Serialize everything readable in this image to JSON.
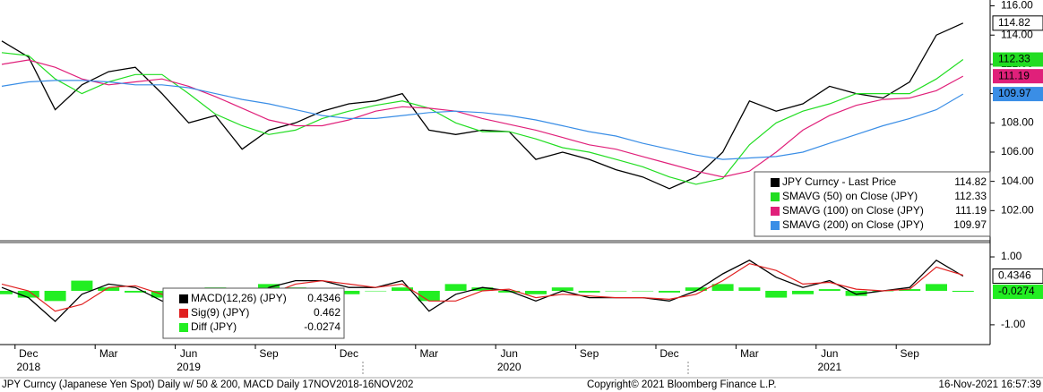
{
  "chart_data": [
    {
      "type": "line",
      "categories": [
        null,
        "Dec",
        null,
        null,
        "Mar",
        null,
        null,
        "Jun",
        null,
        null,
        "Sep",
        null,
        null,
        "Dec",
        null,
        null,
        "Mar",
        null,
        null,
        "Jun",
        null,
        null,
        "Sep",
        null,
        null,
        "Dec",
        null,
        null,
        "Mar",
        null,
        null,
        "Jun",
        null,
        null,
        "Sep",
        null,
        null
      ],
      "year_labels": [
        null,
        "2018",
        null,
        null,
        null,
        null,
        null,
        "2019",
        null,
        null,
        null,
        null,
        null,
        null,
        null,
        null,
        null,
        null,
        null,
        "2020",
        null,
        null,
        null,
        null,
        null,
        null,
        null,
        null,
        null,
        null,
        null,
        "2021",
        null,
        null,
        null,
        null,
        null
      ],
      "series": [
        {
          "name": "JPY Curncy  - Last Price",
          "color": "#000000",
          "values": [
            113.6,
            112.5,
            108.9,
            110.6,
            111.5,
            111.8,
            110.0,
            108.0,
            108.5,
            106.2,
            107.5,
            108.0,
            108.8,
            109.3,
            109.5,
            110.0,
            107.5,
            107.2,
            107.5,
            107.4,
            105.5,
            106.0,
            105.5,
            104.8,
            104.3,
            103.5,
            104.3,
            106.0,
            109.5,
            108.8,
            109.3,
            110.5,
            110.0,
            109.7,
            110.8,
            114.0,
            114.82
          ]
        },
        {
          "name": "SMAVG (50)  on Close (JPY)",
          "color": "#22dd22",
          "values": [
            112.8,
            112.6,
            111.0,
            110.0,
            110.8,
            111.3,
            111.3,
            110.0,
            108.6,
            107.8,
            107.2,
            107.5,
            108.3,
            108.8,
            109.2,
            109.5,
            109.0,
            108.0,
            107.4,
            107.4,
            106.9,
            106.3,
            106.0,
            105.5,
            105.0,
            104.3,
            103.8,
            104.2,
            106.5,
            108.0,
            108.8,
            109.3,
            110.0,
            110.0,
            110.0,
            111.0,
            112.33
          ]
        },
        {
          "name": "SMAVG (100)  on Close (JPY)",
          "color": "#e0207a",
          "values": [
            112.0,
            112.3,
            111.8,
            111.0,
            110.6,
            110.8,
            111.0,
            110.5,
            109.8,
            109.0,
            108.2,
            107.8,
            107.8,
            108.2,
            108.8,
            109.1,
            109.0,
            108.8,
            108.3,
            107.9,
            107.5,
            107.0,
            106.5,
            106.2,
            105.7,
            105.2,
            104.7,
            104.3,
            104.7,
            106.0,
            107.5,
            108.5,
            109.2,
            109.6,
            109.7,
            110.2,
            111.19
          ]
        },
        {
          "name": "SMAVG (200)  on Close (JPY)",
          "color": "#3a8ee6",
          "values": [
            110.5,
            110.8,
            110.9,
            110.9,
            110.8,
            110.6,
            110.6,
            110.4,
            110.0,
            109.6,
            109.3,
            108.9,
            108.5,
            108.3,
            108.3,
            108.5,
            108.7,
            108.8,
            108.7,
            108.5,
            108.2,
            107.8,
            107.4,
            107.1,
            106.6,
            106.2,
            105.8,
            105.5,
            105.6,
            105.7,
            106.0,
            106.6,
            107.2,
            107.8,
            108.3,
            108.9,
            109.97
          ]
        }
      ],
      "ylim": [
        100,
        116.4
      ],
      "yticks": [
        {
          "value": 102,
          "label": "102.00"
        },
        {
          "value": 104,
          "label": "104.00"
        },
        {
          "value": 106,
          "label": "106.00"
        },
        {
          "value": 108,
          "label": "108.00"
        },
        {
          "value": 110,
          "label": "110.00"
        },
        {
          "value": 112,
          "label": "112.00"
        },
        {
          "value": 114,
          "label": "114.00"
        },
        {
          "value": 116,
          "label": "116.00"
        }
      ]
    },
    {
      "type": "line",
      "series": [
        {
          "name": "MACD(12,26) (JPY)",
          "color": "#000000",
          "values": [
            0.1,
            -0.2,
            -0.9,
            -0.1,
            0.2,
            0.1,
            -0.3,
            -0.5,
            -0.2,
            -0.4,
            0.1,
            0.3,
            0.3,
            0.1,
            0.1,
            0.3,
            -0.6,
            -0.1,
            0.1,
            0.0,
            -0.3,
            0.0,
            -0.2,
            -0.2,
            -0.2,
            -0.3,
            0.0,
            0.5,
            0.9,
            0.4,
            0.1,
            0.3,
            -0.1,
            0.0,
            0.1,
            0.9,
            0.4346
          ]
        },
        {
          "name": "Sig(9) (JPY)",
          "color": "#e02020",
          "values": [
            0.2,
            0.0,
            -0.6,
            -0.4,
            0.1,
            0.15,
            -0.1,
            -0.4,
            -0.3,
            -0.35,
            -0.1,
            0.2,
            0.3,
            0.2,
            0.1,
            0.2,
            -0.3,
            -0.3,
            0.0,
            0.05,
            -0.2,
            -0.1,
            -0.15,
            -0.2,
            -0.2,
            -0.25,
            -0.1,
            0.3,
            0.8,
            0.6,
            0.2,
            0.25,
            0.05,
            0.0,
            0.05,
            0.7,
            0.462
          ]
        },
        {
          "name": "Diff (JPY)",
          "color": "#22ee22",
          "type": "bar",
          "values": [
            -0.1,
            -0.2,
            -0.3,
            0.3,
            0.1,
            -0.05,
            -0.2,
            -0.1,
            0.1,
            -0.05,
            0.2,
            0.1,
            0.0,
            -0.1,
            0.0,
            0.1,
            -0.3,
            0.2,
            0.1,
            -0.05,
            -0.1,
            0.1,
            -0.05,
            0.0,
            0.0,
            -0.05,
            0.1,
            0.2,
            0.1,
            -0.2,
            -0.1,
            0.05,
            -0.15,
            0.0,
            0.05,
            0.2,
            -0.0274
          ]
        }
      ],
      "ylim": [
        -1.53,
        1.37
      ],
      "yticks": [
        {
          "value": -1,
          "label": "-1.00"
        },
        {
          "value": 1,
          "label": "1.00"
        }
      ]
    }
  ],
  "footer": {
    "left": "JPY Curncy (Japanese Yen Spot) Daily w/ 50 & 200, MACD  Daily 17NOV2018-16NOV202",
    "center": "Copyright© 2021 Bloomberg Finance L.P.",
    "right": "16-Nov-2021 16:57:39"
  }
}
